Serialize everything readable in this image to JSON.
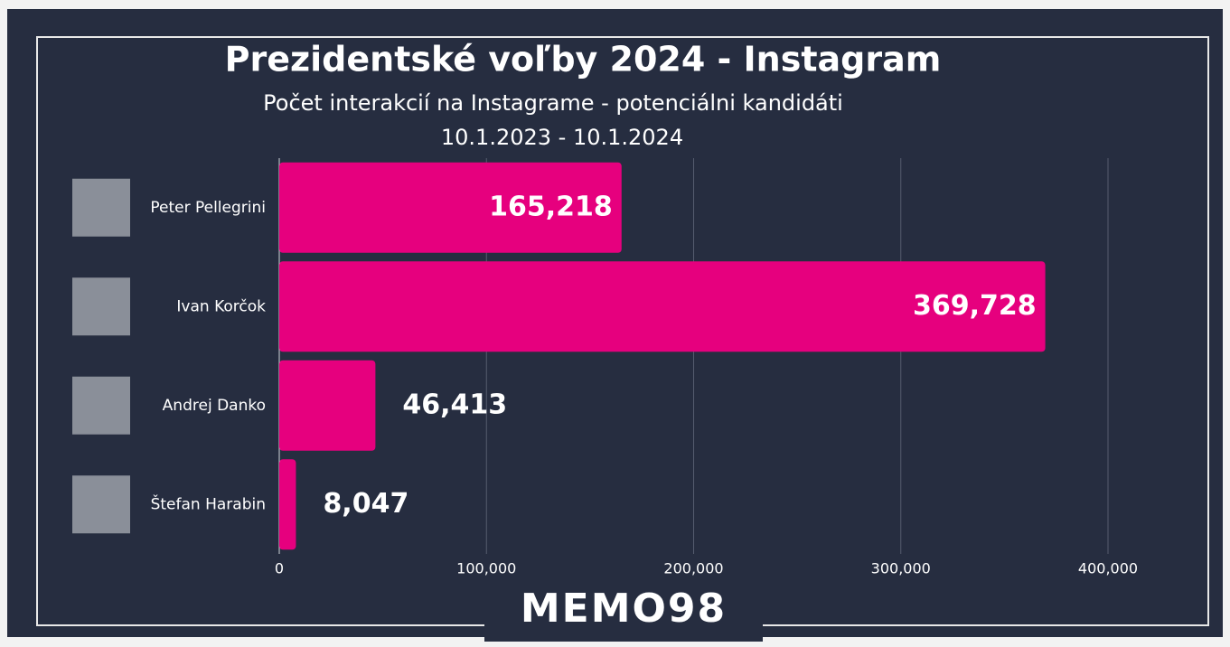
{
  "chart_data": {
    "type": "barh",
    "title": "Prezidentské voľby 2024 - Instagram",
    "subtitle": "Počet interakcií na Instagrame - potenciálni kandidáti",
    "date_range": "10.1.2023 - 10.1.2024",
    "categories": [
      "Peter Pellegrini",
      "Ivan Korčok",
      "Andrej Danko",
      "Štefan Harabin"
    ],
    "values": [
      165218,
      369728,
      46413,
      8047
    ],
    "value_labels": [
      "165,218",
      "369,728",
      "46,413",
      "8,047"
    ],
    "color": "#e6007e",
    "xlim": [
      0,
      400000
    ],
    "xticks": [
      0,
      {
        "value": 100000,
        "label": "100,000"
      },
      {
        "value": 200000,
        "label": "200,000"
      },
      {
        "value": 300000,
        "label": "300,000"
      },
      {
        "value": 400000,
        "label": "400,000"
      }
    ],
    "grid": true,
    "logo": "MEMO98"
  }
}
